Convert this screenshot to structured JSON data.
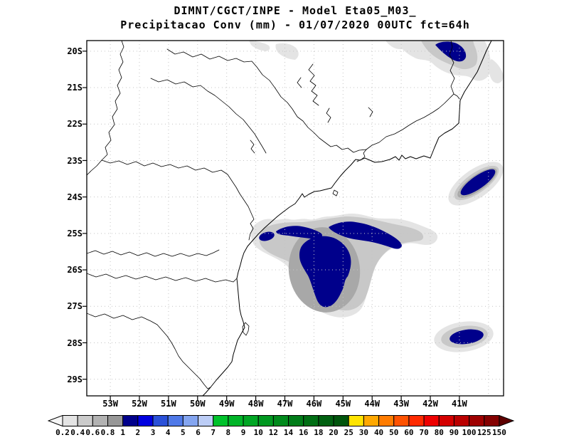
{
  "header": {
    "title_line1": "DIMNT/CGCT/INPE -  Model Eta05_M03_",
    "title_line2": "Precipitacao Conv (mm) - 01/07/2020 00UTC fct=64h"
  },
  "map": {
    "lat_labels": [
      "20S",
      "21S",
      "22S",
      "23S",
      "24S",
      "25S",
      "26S",
      "27S",
      "28S",
      "29S"
    ],
    "lon_labels": [
      "53W",
      "52W",
      "51W",
      "50W",
      "49W",
      "48W",
      "47W",
      "46W",
      "45W",
      "44W",
      "43W",
      "42W",
      "41W"
    ],
    "colors": {
      "precip_gray_1": "#e4e4e4",
      "precip_gray_2": "#c8c8c8",
      "precip_gray_3": "#a8a8a8",
      "precip_navy": "#00008b",
      "map_line": "#000000",
      "grid_dots": "#c4c4c4"
    }
  },
  "colorbar": {
    "tick_labels": [
      "0.2",
      "0.4",
      "0.6",
      "0.8",
      "1",
      "2",
      "3",
      "4",
      "5",
      "6",
      "7",
      "8",
      "9",
      "10",
      "12",
      "14",
      "16",
      "18",
      "20",
      "25",
      "30",
      "40",
      "50",
      "60",
      "70",
      "80",
      "90",
      "100",
      "125",
      "150"
    ],
    "segment_colors": [
      "#e4e4e4",
      "#cbcbcb",
      "#b2b2b2",
      "#979797",
      "#00008b",
      "#0000e0",
      "#2a50d8",
      "#4f79e8",
      "#84a5f0",
      "#bccdf6",
      "#00c22c",
      "#00b428",
      "#00a624",
      "#009820",
      "#008a1c",
      "#007c18",
      "#006e14",
      "#006010",
      "#00540c",
      "#ffe400",
      "#ffa800",
      "#ff7c00",
      "#ff5200",
      "#ff2a00",
      "#ee0000",
      "#d40000",
      "#ba0000",
      "#9e0000",
      "#840000"
    ],
    "arrow_left_color": "#f6f6f6",
    "arrow_right_color": "#5e0000"
  },
  "chart_data": {
    "type": "heatmap",
    "title": "Precipitacao Conv (mm) - Model Eta05_M03_ - 01/07/2020 00UTC fct=64h",
    "units": "mm",
    "x_tick_labels": [
      "53W",
      "52W",
      "51W",
      "50W",
      "49W",
      "48W",
      "47W",
      "46W",
      "45W",
      "44W",
      "43W",
      "42W",
      "41W"
    ],
    "y_tick_labels": [
      "20S",
      "21S",
      "22S",
      "23S",
      "24S",
      "25S",
      "26S",
      "27S",
      "28S",
      "29S"
    ],
    "xlim_deg_lon_west": [
      53.8,
      39.4
    ],
    "ylim_deg_lat_south": [
      19.7,
      29.5
    ],
    "grid": "dotted 1-degree",
    "legend_position": "bottom horizontal colorbar with end arrows",
    "scale_levels_mm": [
      0.2,
      0.4,
      0.6,
      0.8,
      1,
      2,
      3,
      4,
      5,
      6,
      7,
      8,
      9,
      10,
      12,
      14,
      16,
      18,
      20,
      25,
      30,
      40,
      50,
      60,
      70,
      80,
      90,
      100,
      125,
      150
    ],
    "precip_features": [
      {
        "area": "patches near top center (Minas Gerais)",
        "lat": -19.9,
        "lon": -46.9,
        "max_mm": 0.8
      },
      {
        "area": "cell at top right near MG/ES border",
        "lat": -20.0,
        "lon": -41.8,
        "max_mm": 2
      },
      {
        "area": "small patch at right edge",
        "lat": -20.5,
        "lon": -39.9,
        "max_mm": 0.8
      },
      {
        "area": "tilted oval offshore Cabo Frio",
        "lat": -23.7,
        "lon": -40.9,
        "max_mm": 2
      },
      {
        "area": "elongated band offshore Sao Paulo coast",
        "lat": -25.0,
        "lon": -46.5,
        "max_mm": 2
      },
      {
        "area": "large cell offshore Santa Catarina",
        "lat": -26.2,
        "lon": -45.9,
        "max_mm": 2
      },
      {
        "area": "oval cell offshore far southeast",
        "lat": -28.0,
        "lon": -41.8,
        "max_mm": 2
      }
    ]
  }
}
